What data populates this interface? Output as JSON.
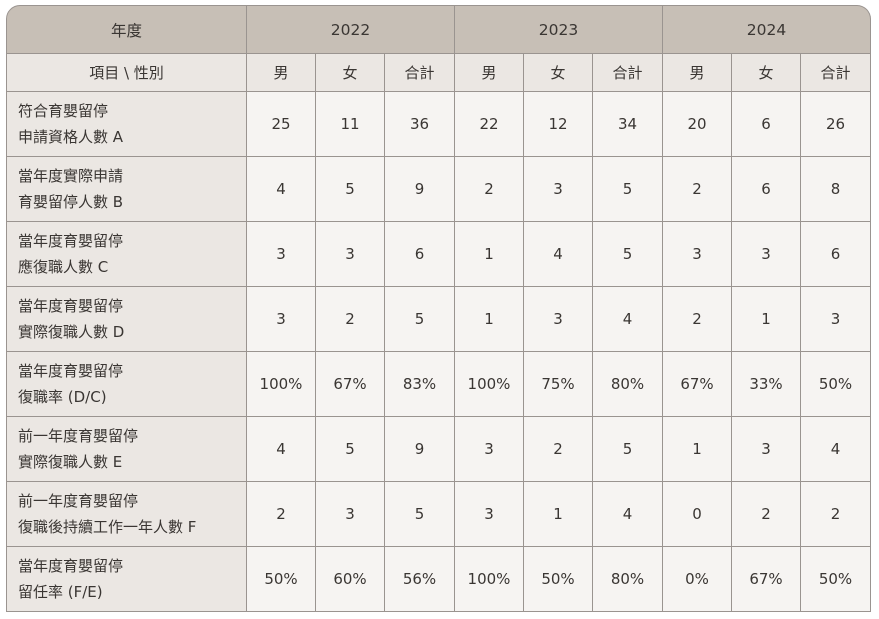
{
  "header": {
    "corner": "年度",
    "years": [
      "2022",
      "2023",
      "2024"
    ],
    "item_label": "項目 \\ 性別",
    "genders": [
      "男",
      "女",
      "合計"
    ]
  },
  "rows": [
    {
      "label1": "符合育嬰留停",
      "label2": "申請資格人數 A",
      "values": [
        "25",
        "11",
        "36",
        "22",
        "12",
        "34",
        "20",
        "6",
        "26"
      ]
    },
    {
      "label1": "當年度實際申請",
      "label2": "育嬰留停人數 B",
      "values": [
        "4",
        "5",
        "9",
        "2",
        "3",
        "5",
        "2",
        "6",
        "8"
      ]
    },
    {
      "label1": "當年度育嬰留停",
      "label2": "應復職人數 C",
      "values": [
        "3",
        "3",
        "6",
        "1",
        "4",
        "5",
        "3",
        "3",
        "6"
      ]
    },
    {
      "label1": "當年度育嬰留停",
      "label2": "實際復職人數 D",
      "values": [
        "3",
        "2",
        "5",
        "1",
        "3",
        "4",
        "2",
        "1",
        "3"
      ]
    },
    {
      "label1": "當年度育嬰留停",
      "label2": "復職率 (D/C)",
      "values": [
        "100%",
        "67%",
        "83%",
        "100%",
        "75%",
        "80%",
        "67%",
        "33%",
        "50%"
      ]
    },
    {
      "label1": "前一年度育嬰留停",
      "label2": "實際復職人數 E",
      "values": [
        "4",
        "5",
        "9",
        "3",
        "2",
        "5",
        "1",
        "3",
        "4"
      ]
    },
    {
      "label1": "前一年度育嬰留停",
      "label2": "復職後持續工作一年人數 F",
      "values": [
        "2",
        "3",
        "5",
        "3",
        "1",
        "4",
        "0",
        "2",
        "2"
      ]
    },
    {
      "label1": "當年度育嬰留停",
      "label2": "留任率 (F/E)",
      "values": [
        "50%",
        "60%",
        "56%",
        "100%",
        "50%",
        "80%",
        "0%",
        "67%",
        "50%"
      ]
    }
  ]
}
